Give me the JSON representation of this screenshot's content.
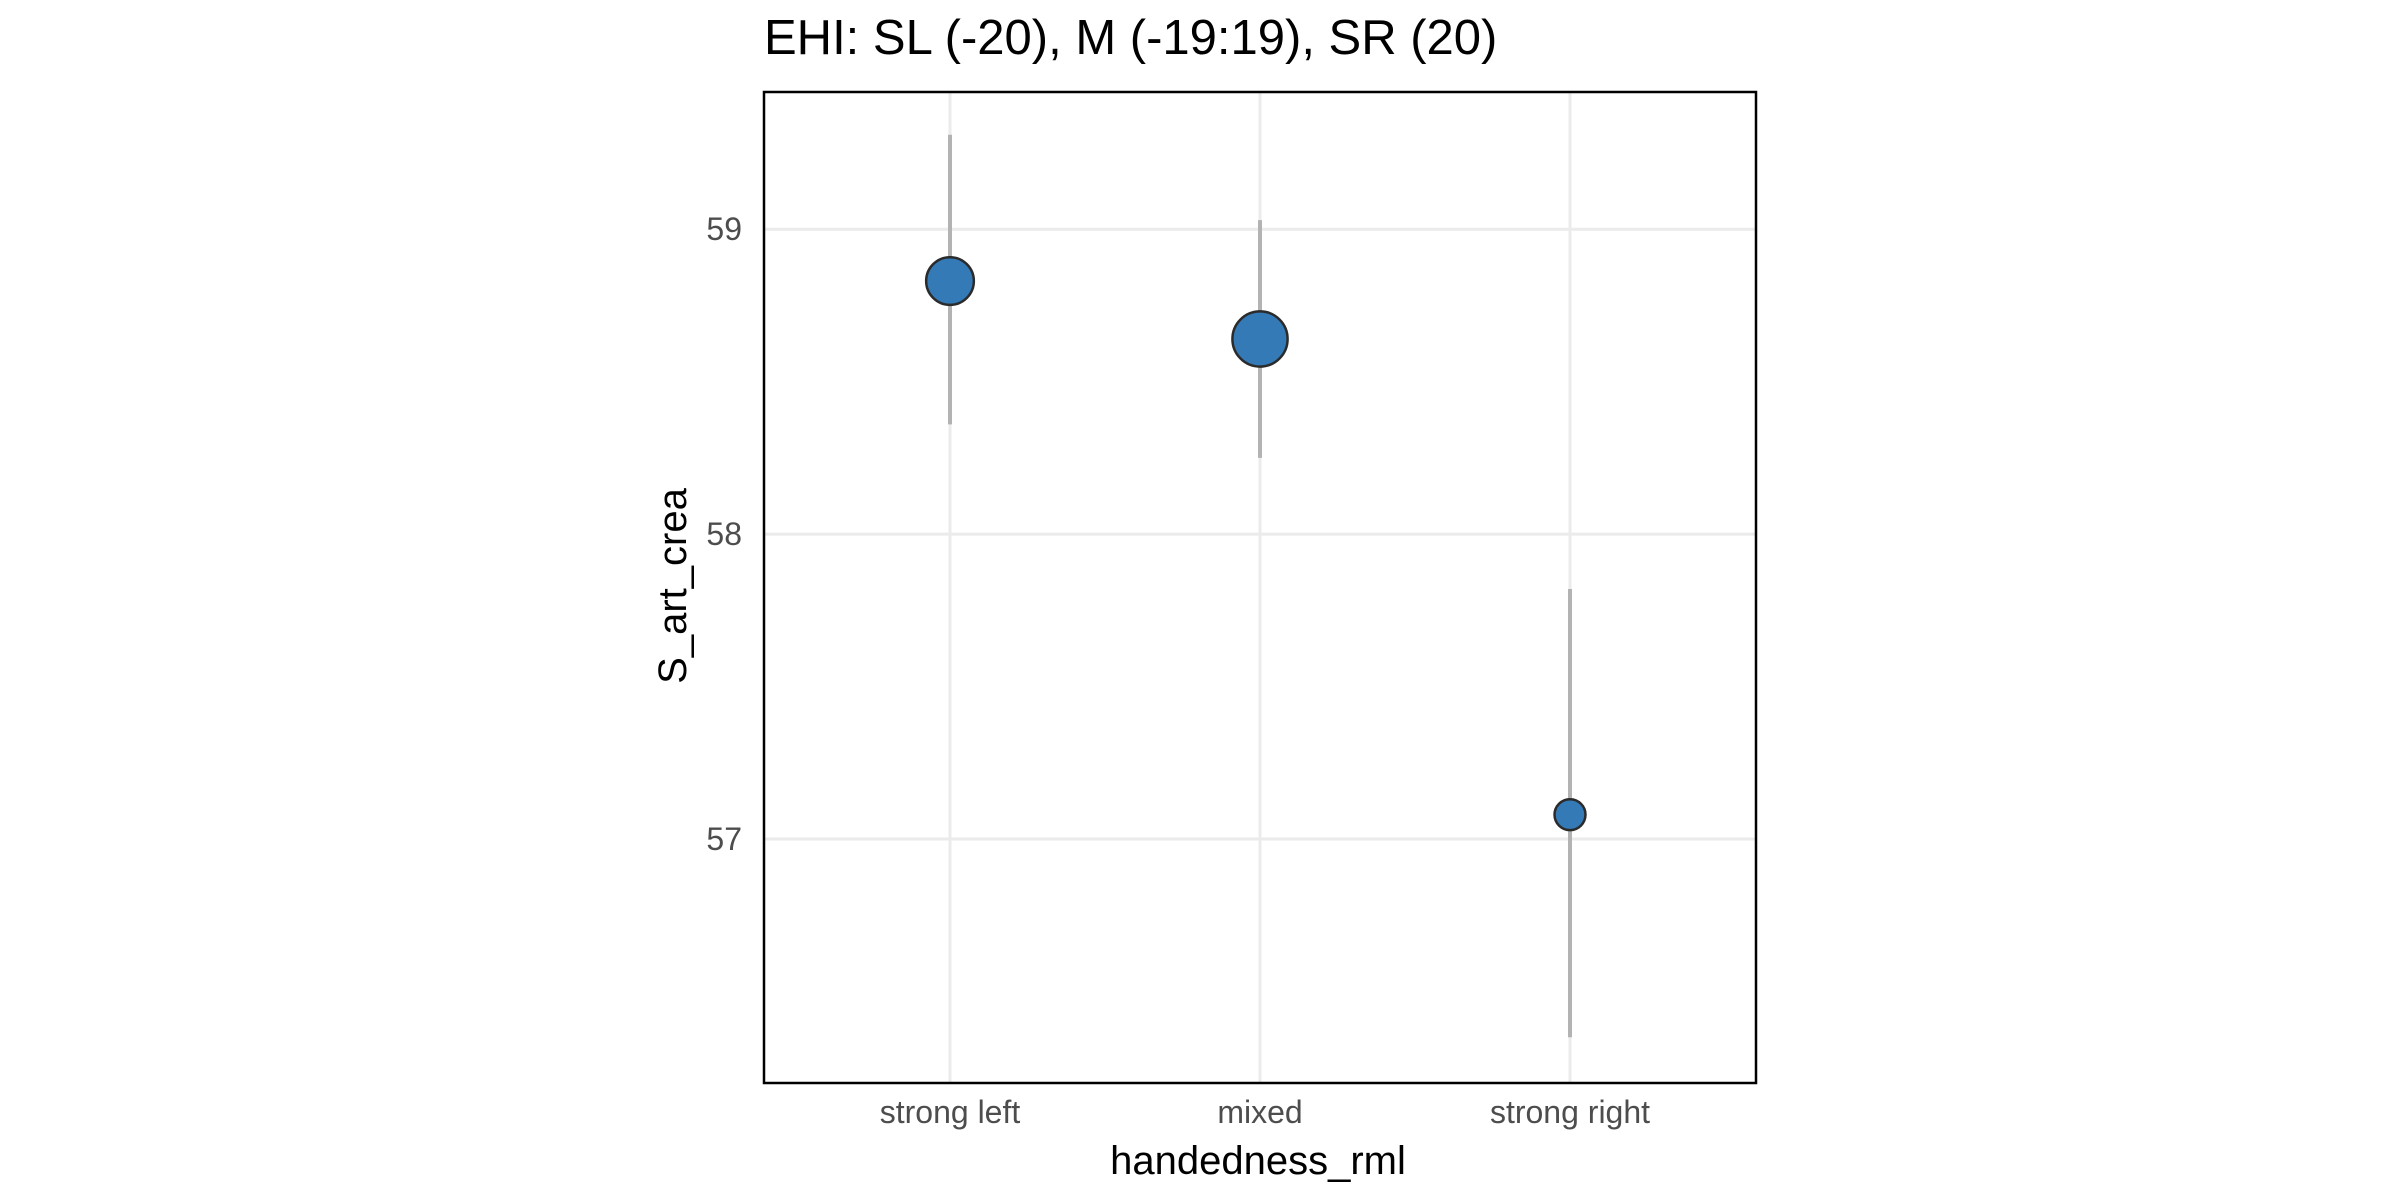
{
  "chart_data": {
    "type": "scatter",
    "title": "EHI: SL (-20), M (-19:19), SR (20)",
    "xlabel": "handedness_rml",
    "ylabel": "S_art_crea",
    "categories": [
      "strong left",
      "mixed",
      "strong right"
    ],
    "ylim": [
      56.2,
      59.45
    ],
    "yticks": [
      57,
      58,
      59
    ],
    "ytick_labels": [
      "57",
      "58",
      "59"
    ],
    "grid": true,
    "legend": "none",
    "point_color": "#337ab7",
    "series": [
      {
        "values": [
          58.83,
          58.64,
          57.08
        ],
        "lower": [
          58.36,
          58.25,
          56.35
        ],
        "upper": [
          59.31,
          59.03,
          57.82
        ],
        "relative_size": [
          0.72,
          0.89,
          0.34
        ]
      }
    ]
  }
}
